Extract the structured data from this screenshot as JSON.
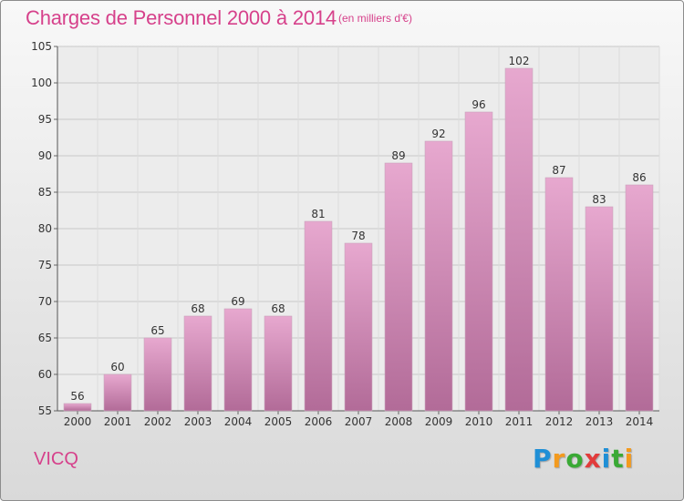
{
  "chart_data": {
    "type": "bar",
    "title": "Charges de Personnel 2000 à 2014",
    "subtitle": "(en milliers d'€)",
    "categories": [
      "2000",
      "2001",
      "2002",
      "2003",
      "2004",
      "2005",
      "2006",
      "2007",
      "2008",
      "2009",
      "2010",
      "2011",
      "2012",
      "2013",
      "2014"
    ],
    "values": [
      56,
      60,
      65,
      68,
      69,
      68,
      81,
      78,
      89,
      92,
      96,
      102,
      87,
      83,
      86
    ],
    "ylim": [
      55,
      105
    ],
    "yticks": [
      55,
      60,
      65,
      70,
      75,
      80,
      85,
      90,
      95,
      100,
      105
    ],
    "grid": true,
    "bar_color": "#d77ab0"
  },
  "footer": {
    "commune": "VICQ",
    "brand": [
      "P",
      "r",
      "o",
      "x",
      "i",
      "t",
      "i"
    ],
    "brand_colors": [
      "#1f8fd6",
      "#f39a1e",
      "#3aa935",
      "#e23b3b",
      "#1f8fd6",
      "#3aa935",
      "#f39a1e"
    ]
  }
}
